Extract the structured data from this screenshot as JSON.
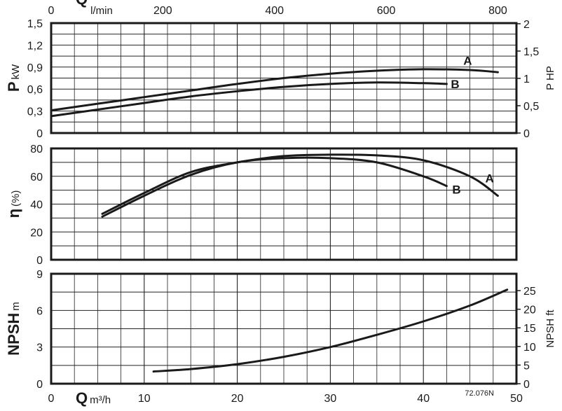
{
  "chart_data": {
    "type": "line",
    "code": "72.076N",
    "x_primary": {
      "symbol": "Q",
      "unit": "m³/h",
      "range": [
        0,
        50
      ],
      "ticks": [
        0,
        10,
        20,
        30,
        40,
        50
      ]
    },
    "x_secondary": {
      "symbol": "Q",
      "unit": "l/min",
      "range": [
        0,
        833.3
      ],
      "ticks": [
        0,
        200,
        400,
        600,
        800
      ]
    },
    "panels": [
      {
        "id": "power",
        "ylabel_symbol": "P",
        "ylabel_unit": "kW",
        "ylim": [
          0,
          1.5
        ],
        "yticks": [
          "0",
          "0,3",
          "0,6",
          "0,9",
          "1,2",
          "1,5"
        ],
        "ytick_values": [
          0,
          0.3,
          0.6,
          0.9,
          1.2,
          1.5
        ],
        "y2label": "P HP",
        "y2_factor": 1.341,
        "y2ticks": [
          "0",
          "0,5",
          "1",
          "1,5",
          "2"
        ],
        "y2tick_values": [
          0,
          0.5,
          1,
          1.5,
          2
        ],
        "series": [
          {
            "name": "A",
            "x": [
              0,
              5,
              10,
              15,
              20,
              25,
              30,
              35,
              40,
              45,
              48
            ],
            "y": [
              0.31,
              0.4,
              0.49,
              0.58,
              0.67,
              0.75,
              0.81,
              0.85,
              0.87,
              0.86,
              0.83
            ]
          },
          {
            "name": "B",
            "x": [
              0,
              5,
              10,
              15,
              20,
              25,
              30,
              35,
              40,
              42.5
            ],
            "y": [
              0.23,
              0.32,
              0.41,
              0.5,
              0.57,
              0.63,
              0.67,
              0.69,
              0.68,
              0.67
            ]
          }
        ]
      },
      {
        "id": "efficiency",
        "ylabel_symbol": "η",
        "ylabel_unit": "(%)",
        "ylim": [
          0,
          80
        ],
        "yticks": [
          "0",
          "20",
          "40",
          "60",
          "80"
        ],
        "ytick_values": [
          0,
          20,
          40,
          60,
          80
        ],
        "series": [
          {
            "name": "A",
            "x": [
              5.5,
              10,
              15,
              20,
              25,
              30,
              35,
              40,
              45,
              48
            ],
            "y": [
              33,
              48,
              63,
              70,
              74.5,
              75.5,
              75,
              71.5,
              60,
              46
            ]
          },
          {
            "name": "B",
            "x": [
              5.5,
              10,
              15,
              20,
              25,
              30,
              35,
              40,
              42.5
            ],
            "y": [
              31,
              46,
              61,
              70,
              73,
              73,
              70,
              60,
              53
            ]
          }
        ]
      },
      {
        "id": "npsh",
        "ylabel_symbol": "NPSH",
        "ylabel_unit": "m",
        "ylim": [
          0,
          9
        ],
        "yticks": [
          "0",
          "3",
          "6",
          "9"
        ],
        "ytick_values": [
          0,
          3,
          6,
          9
        ],
        "y2label": "NPSH ft",
        "y2_factor": 3.281,
        "y2ticks": [
          "0",
          "5",
          "10",
          "15",
          "20",
          "25"
        ],
        "y2tick_values": [
          0,
          5,
          10,
          15,
          20,
          25
        ],
        "series": [
          {
            "name": "",
            "x": [
              11,
              15,
              20,
              25,
              30,
              35,
              40,
              45,
              49
            ],
            "y": [
              1.0,
              1.2,
              1.6,
              2.2,
              3.0,
              4.0,
              5.1,
              6.4,
              7.7
            ]
          }
        ]
      }
    ]
  }
}
